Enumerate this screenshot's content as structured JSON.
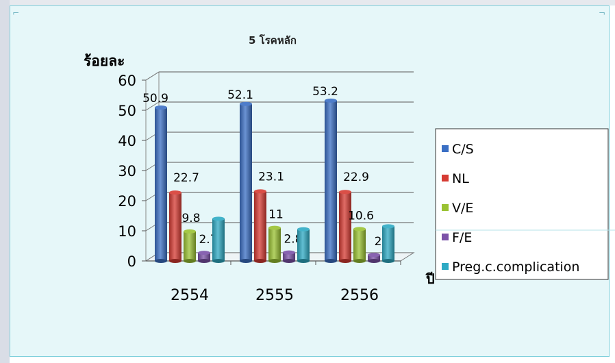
{
  "chart_data": {
    "type": "bar",
    "title": "5 โรคหลัก",
    "ylabel": "ร้อยละ",
    "xlabel": "ปี",
    "categories": [
      "2554",
      "2555",
      "2556"
    ],
    "ylim": [
      0,
      60
    ],
    "yticks": [
      "0",
      "10",
      "20",
      "30",
      "40",
      "50",
      "60"
    ],
    "legend_position": "right",
    "series": [
      {
        "name": "C/S",
        "color": "#3a6fc4",
        "values": [
          50.9,
          52.1,
          53.2
        ],
        "labels": [
          "50.9",
          "52.1",
          "53.2"
        ]
      },
      {
        "name": "NL",
        "color": "#d63b33",
        "values": [
          22.7,
          23.1,
          22.9
        ],
        "labels": [
          "22.7",
          "23.1",
          "22.9"
        ]
      },
      {
        "name": "V/E",
        "color": "#9ac232",
        "values": [
          9.8,
          11,
          10.6
        ],
        "labels": [
          "9.8",
          "11",
          "10.6"
        ]
      },
      {
        "name": "F/E",
        "color": "#7b52a8",
        "values": [
          2.7,
          2.8,
          2
        ],
        "labels": [
          "2.7",
          "2.8",
          "2"
        ]
      },
      {
        "name": "Preg.c.complication",
        "color": "#2eaac4",
        "values": [
          14,
          10.5,
          11.5
        ],
        "labels": [
          "",
          "",
          ""
        ]
      }
    ]
  }
}
